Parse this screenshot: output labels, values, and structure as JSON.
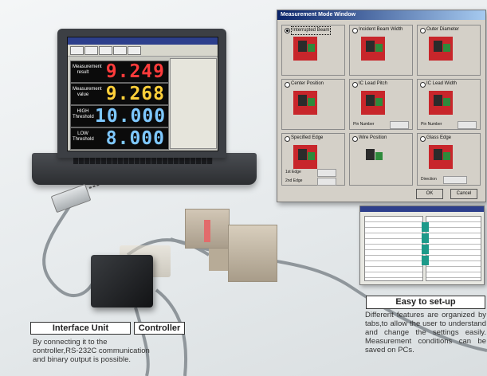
{
  "laptop": {
    "rows": [
      {
        "label": "Measurement result",
        "value": "9.249",
        "color": "#ff3b3b"
      },
      {
        "label": "Measurement value",
        "value": "9.268",
        "color": "#ffd03a"
      },
      {
        "label": "HIGH Threshold",
        "value": "10.000",
        "color": "#7ec8ff"
      },
      {
        "label": "LOW Threshold",
        "value": "8.000",
        "color": "#7ec8ff"
      }
    ]
  },
  "measurement_window": {
    "title": "Measurement Mode Window",
    "options": [
      {
        "label": "Interrupted Beam",
        "selected": true
      },
      {
        "label": "Incident Beam Width",
        "selected": false
      },
      {
        "label": "Outer Diameter",
        "selected": false
      },
      {
        "label": "Center Position",
        "selected": false
      },
      {
        "label": "IC Lead Pitch",
        "selected": false
      },
      {
        "label": "IC Lead Width",
        "selected": false
      },
      {
        "label": "Specified Edge",
        "selected": false
      },
      {
        "label": "Wire Position",
        "selected": false
      },
      {
        "label": "Glass Edge",
        "selected": false
      }
    ],
    "pin_number_label": "Pin Number",
    "first_edge_label": "1st Edge",
    "second_edge_label": "2nd Edge",
    "direction_label": "Direction",
    "ok_label": "OK",
    "cancel_label": "Cancel"
  },
  "labels": {
    "interface_unit": "Interface Unit",
    "controller": "Controller",
    "interface_desc": "By connecting it to the controller,RS-232C communication and binary output is possible.",
    "easy_title": "Easy to set-up",
    "easy_desc": "Different features are organized by tabs,to allow the user to understand and change the settings easily. Measurement conditions can be saved on PCs."
  }
}
